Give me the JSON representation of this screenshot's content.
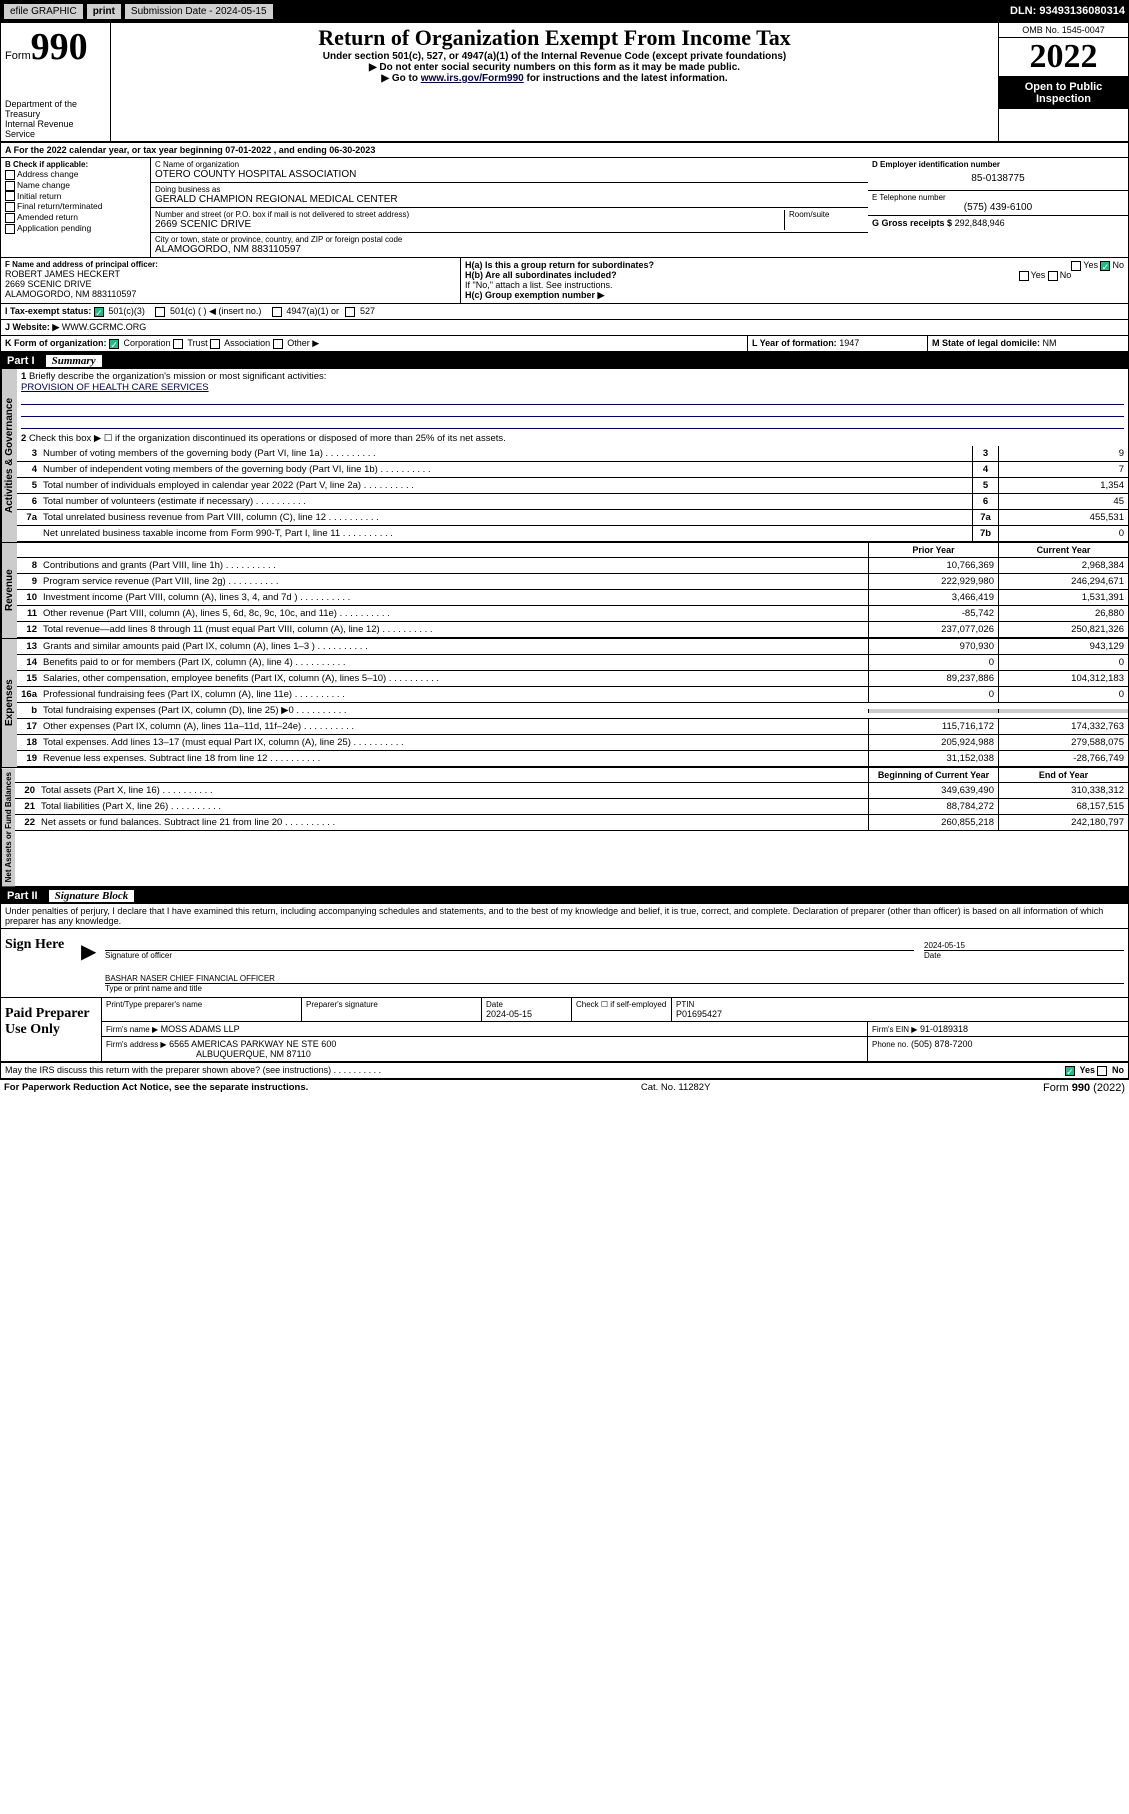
{
  "topbar": {
    "efile": "efile GRAPHIC",
    "print": "print",
    "sub_date_lbl": "Submission Date - 2024-05-15",
    "dln": "DLN: 93493136080314"
  },
  "header": {
    "form_word": "Form",
    "form_num": "990",
    "dept": "Department of the Treasury",
    "irs": "Internal Revenue Service",
    "title": "Return of Organization Exempt From Income Tax",
    "sub1": "Under section 501(c), 527, or 4947(a)(1) of the Internal Revenue Code (except private foundations)",
    "sub2": "▶ Do not enter social security numbers on this form as it may be made public.",
    "sub3_pre": "▶ Go to ",
    "sub3_link": "www.irs.gov/Form990",
    "sub3_post": " for instructions and the latest information.",
    "omb": "OMB No. 1545-0047",
    "year": "2022",
    "public": "Open to Public Inspection"
  },
  "lineA": {
    "text": "A For the 2022 calendar year, or tax year beginning 07-01-2022    , and ending 06-30-2023"
  },
  "blockB": {
    "hdr": "B Check if applicable:",
    "opts": [
      "Address change",
      "Name change",
      "Initial return",
      "Final return/terminated",
      "Amended return",
      "Application pending"
    ]
  },
  "blockC": {
    "name_lbl": "C Name of organization",
    "name": "OTERO COUNTY HOSPITAL ASSOCIATION",
    "dba_lbl": "Doing business as",
    "dba": "GERALD CHAMPION REGIONAL MEDICAL CENTER",
    "addr_lbl": "Number and street (or P.O. box if mail is not delivered to street address)",
    "room_lbl": "Room/suite",
    "addr": "2669 SCENIC DRIVE",
    "city_lbl": "City or town, state or province, country, and ZIP or foreign postal code",
    "city": "ALAMOGORDO, NM  883110597"
  },
  "blockD": {
    "lbl": "D Employer identification number",
    "val": "85-0138775"
  },
  "blockE": {
    "lbl": "E Telephone number",
    "val": "(575) 439-6100"
  },
  "blockG": {
    "lbl": "G Gross receipts $",
    "val": "292,848,946"
  },
  "blockF": {
    "lbl": "F Name and address of principal officer:",
    "name": "ROBERT JAMES HECKERT",
    "addr1": "2669 SCENIC DRIVE",
    "addr2": "ALAMOGORDO, NM  883110597"
  },
  "blockH": {
    "ha": "H(a)  Is this a group return for subordinates?",
    "ha_yes": "Yes",
    "ha_no": "No",
    "hb": "H(b)  Are all subordinates included?",
    "hb_yes": "Yes",
    "hb_no": "No",
    "hb_note": "If \"No,\" attach a list. See instructions.",
    "hc": "H(c)  Group exemption number ▶"
  },
  "lineI": {
    "lbl": "I   Tax-exempt status:",
    "o1": "501(c)(3)",
    "o2": "501(c) (  ) ◀ (insert no.)",
    "o3": "4947(a)(1) or",
    "o4": "527"
  },
  "lineJ": {
    "lbl": "J   Website: ▶",
    "val": "WWW.GCRMC.ORG"
  },
  "lineK": {
    "lbl": "K Form of organization:",
    "o1": "Corporation",
    "o2": "Trust",
    "o3": "Association",
    "o4": "Other ▶"
  },
  "lineL": {
    "lbl": "L Year of formation:",
    "val": "1947"
  },
  "lineM": {
    "lbl": "M State of legal domicile:",
    "val": "NM"
  },
  "part1": {
    "hdr": "Part I",
    "title": "Summary",
    "q1": "Briefly describe the organization's mission or most significant activities:",
    "mission": "PROVISION OF HEALTH CARE SERVICES",
    "q2": "Check this box ▶ ☐  if the organization discontinued its operations or disposed of more than 25% of its net assets."
  },
  "sections": {
    "gov": "Activities & Governance",
    "rev": "Revenue",
    "exp": "Expenses",
    "net": "Net Assets or Fund Balances"
  },
  "gov_lines": [
    {
      "n": "3",
      "t": "Number of voting members of the governing body (Part VI, line 1a)",
      "box": "3",
      "v": "9"
    },
    {
      "n": "4",
      "t": "Number of independent voting members of the governing body (Part VI, line 1b)",
      "box": "4",
      "v": "7"
    },
    {
      "n": "5",
      "t": "Total number of individuals employed in calendar year 2022 (Part V, line 2a)",
      "box": "5",
      "v": "1,354"
    },
    {
      "n": "6",
      "t": "Total number of volunteers (estimate if necessary)",
      "box": "6",
      "v": "45"
    },
    {
      "n": "7a",
      "t": "Total unrelated business revenue from Part VIII, column (C), line 12",
      "box": "7a",
      "v": "455,531"
    },
    {
      "n": "",
      "t": "Net unrelated business taxable income from Form 990-T, Part I, line 11",
      "box": "7b",
      "v": "0"
    }
  ],
  "cols": {
    "prior": "Prior Year",
    "current": "Current Year",
    "boy": "Beginning of Current Year",
    "eoy": "End of Year"
  },
  "rev_lines": [
    {
      "n": "8",
      "t": "Contributions and grants (Part VIII, line 1h)",
      "p": "10,766,369",
      "c": "2,968,384"
    },
    {
      "n": "9",
      "t": "Program service revenue (Part VIII, line 2g)",
      "p": "222,929,980",
      "c": "246,294,671"
    },
    {
      "n": "10",
      "t": "Investment income (Part VIII, column (A), lines 3, 4, and 7d )",
      "p": "3,466,419",
      "c": "1,531,391"
    },
    {
      "n": "11",
      "t": "Other revenue (Part VIII, column (A), lines 5, 6d, 8c, 9c, 10c, and 11e)",
      "p": "-85,742",
      "c": "26,880"
    },
    {
      "n": "12",
      "t": "Total revenue—add lines 8 through 11 (must equal Part VIII, column (A), line 12)",
      "p": "237,077,026",
      "c": "250,821,326"
    }
  ],
  "exp_lines": [
    {
      "n": "13",
      "t": "Grants and similar amounts paid (Part IX, column (A), lines 1–3 )",
      "p": "970,930",
      "c": "943,129"
    },
    {
      "n": "14",
      "t": "Benefits paid to or for members (Part IX, column (A), line 4)",
      "p": "0",
      "c": "0"
    },
    {
      "n": "15",
      "t": "Salaries, other compensation, employee benefits (Part IX, column (A), lines 5–10)",
      "p": "89,237,886",
      "c": "104,312,183"
    },
    {
      "n": "16a",
      "t": "Professional fundraising fees (Part IX, column (A), line 11e)",
      "p": "0",
      "c": "0"
    },
    {
      "n": "b",
      "t": "Total fundraising expenses (Part IX, column (D), line 25) ▶0",
      "p": "",
      "c": "",
      "gray": true
    },
    {
      "n": "17",
      "t": "Other expenses (Part IX, column (A), lines 11a–11d, 11f–24e)",
      "p": "115,716,172",
      "c": "174,332,763"
    },
    {
      "n": "18",
      "t": "Total expenses. Add lines 13–17 (must equal Part IX, column (A), line 25)",
      "p": "205,924,988",
      "c": "279,588,075"
    },
    {
      "n": "19",
      "t": "Revenue less expenses. Subtract line 18 from line 12",
      "p": "31,152,038",
      "c": "-28,766,749"
    }
  ],
  "net_lines": [
    {
      "n": "20",
      "t": "Total assets (Part X, line 16)",
      "p": "349,639,490",
      "c": "310,338,312"
    },
    {
      "n": "21",
      "t": "Total liabilities (Part X, line 26)",
      "p": "88,784,272",
      "c": "68,157,515"
    },
    {
      "n": "22",
      "t": "Net assets or fund balances. Subtract line 21 from line 20",
      "p": "260,855,218",
      "c": "242,180,797"
    }
  ],
  "part2": {
    "hdr": "Part II",
    "title": "Signature Block",
    "decl": "Under penalties of perjury, I declare that I have examined this return, including accompanying schedules and statements, and to the best of my knowledge and belief, it is true, correct, and complete. Declaration of preparer (other than officer) is based on all information of which preparer has any knowledge."
  },
  "sign": {
    "here": "Sign Here",
    "sig_lbl": "Signature of officer",
    "date_lbl": "Date",
    "date": "2024-05-15",
    "name": "BASHAR NASER  CHIEF FINANCIAL OFFICER",
    "name_lbl": "Type or print name and title"
  },
  "paid": {
    "hdr": "Paid Preparer Use Only",
    "c1": "Print/Type preparer's name",
    "c2": "Preparer's signature",
    "c3_lbl": "Date",
    "c3": "2024-05-15",
    "c4_lbl": "Check ☐ if self-employed",
    "c5_lbl": "PTIN",
    "c5": "P01695427",
    "firm_lbl": "Firm's name    ▶",
    "firm": "MOSS ADAMS LLP",
    "ein_lbl": "Firm's EIN ▶",
    "ein": "91-0189318",
    "addr_lbl": "Firm's address ▶",
    "addr": "6565 AMERICAS PARKWAY NE STE 600",
    "addr2": "ALBUQUERQUE, NM  87110",
    "phone_lbl": "Phone no.",
    "phone": "(505) 878-7200"
  },
  "bottom": {
    "q": "May the IRS discuss this return with the preparer shown above? (see instructions)",
    "yes": "Yes",
    "no": "No",
    "pra": "For Paperwork Reduction Act Notice, see the separate instructions.",
    "cat": "Cat. No. 11282Y",
    "form": "Form 990 (2022)"
  }
}
